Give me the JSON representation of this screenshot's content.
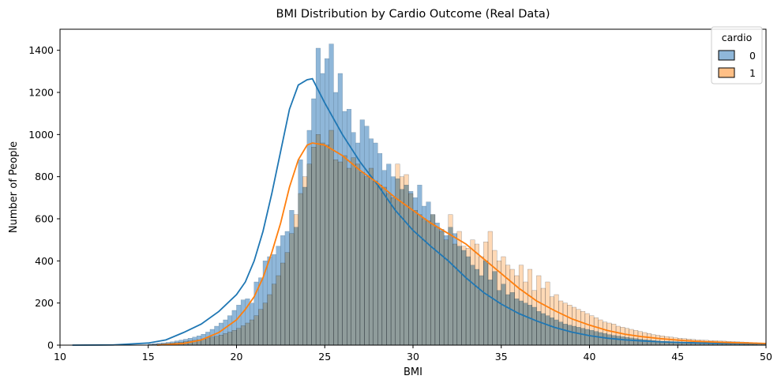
{
  "chart_data": {
    "type": "histogram",
    "title": "BMI Distribution by Cardio Outcome (Real Data)",
    "xlabel": "BMI",
    "ylabel": "Number of People",
    "xlim": [
      10,
      50
    ],
    "ylim": [
      0,
      1500
    ],
    "x_ticks": [
      10,
      15,
      20,
      25,
      30,
      35,
      40,
      45,
      50
    ],
    "y_ticks": [
      0,
      200,
      400,
      600,
      800,
      1000,
      1200,
      1400
    ],
    "legend": {
      "title": "cardio",
      "placement": "top-right"
    },
    "bin_width": 0.25,
    "bins_start": 15.0,
    "series": [
      {
        "name": "0",
        "bar_color": "#8fb7d9",
        "line_color": "#1f77b4",
        "counts": [
          5,
          7,
          9,
          11,
          13,
          16,
          20,
          24,
          28,
          33,
          38,
          44,
          52,
          62,
          75,
          90,
          105,
          120,
          140,
          165,
          190,
          215,
          220,
          200,
          300,
          320,
          400,
          420,
          430,
          470,
          520,
          540,
          640,
          560,
          880,
          750,
          1020,
          1170,
          1410,
          1290,
          1360,
          1430,
          1200,
          1290,
          1110,
          1120,
          1010,
          960,
          1070,
          1040,
          980,
          960,
          910,
          830,
          860,
          800,
          790,
          740,
          760,
          730,
          700,
          760,
          660,
          680,
          620,
          580,
          550,
          520,
          560,
          530,
          470,
          450,
          420,
          380,
          360,
          330,
          400,
          310,
          350,
          260,
          290,
          240,
          250,
          220,
          210,
          200,
          190,
          180,
          160,
          150,
          140,
          130,
          120,
          110,
          100,
          95,
          90,
          85,
          80,
          75,
          70,
          65,
          60,
          55,
          50,
          46,
          43,
          40,
          37,
          34,
          31,
          28,
          26,
          24,
          22,
          20,
          18,
          17,
          16,
          15,
          14,
          13,
          12,
          11,
          10,
          9,
          8,
          8,
          7,
          6,
          6,
          5,
          5,
          4,
          4,
          3,
          3,
          3,
          2,
          2,
          2,
          2,
          1,
          1,
          1,
          1,
          1,
          1,
          1,
          1
        ]
      },
      {
        "name": "1",
        "bar_color": "#ffbf86",
        "line_color": "#ff7f0e",
        "counts": [
          3,
          4,
          5,
          6,
          8,
          10,
          12,
          14,
          17,
          20,
          23,
          26,
          30,
          34,
          38,
          42,
          48,
          55,
          62,
          70,
          80,
          92,
          105,
          120,
          140,
          170,
          200,
          240,
          290,
          330,
          390,
          440,
          530,
          620,
          720,
          800,
          860,
          940,
          1000,
          960,
          950,
          1020,
          880,
          870,
          900,
          840,
          890,
          860,
          820,
          800,
          840,
          780,
          760,
          750,
          720,
          700,
          860,
          800,
          810,
          720,
          640,
          620,
          600,
          590,
          620,
          560,
          540,
          500,
          620,
          480,
          540,
          470,
          460,
          500,
          480,
          420,
          490,
          540,
          450,
          400,
          420,
          380,
          360,
          330,
          380,
          300,
          360,
          260,
          330,
          270,
          300,
          230,
          240,
          210,
          200,
          190,
          180,
          170,
          160,
          150,
          140,
          130,
          120,
          110,
          105,
          100,
          90,
          85,
          80,
          75,
          70,
          65,
          60,
          55,
          50,
          47,
          44,
          41,
          38,
          35,
          33,
          31,
          29,
          27,
          25,
          24,
          23,
          22,
          21,
          20,
          19,
          18,
          17,
          16,
          15,
          14,
          13,
          12,
          11,
          10,
          10,
          9,
          9,
          8,
          8
        ]
      }
    ],
    "kde": [
      {
        "name": "0",
        "x": [
          10.7,
          13,
          15,
          16,
          17,
          18,
          19,
          20,
          20.5,
          21,
          21.5,
          22,
          22.5,
          23,
          23.5,
          24,
          24.3,
          25,
          26,
          27,
          28,
          29,
          30,
          31,
          32,
          33,
          34,
          35,
          36,
          37,
          38,
          39,
          40,
          41,
          42,
          43,
          44,
          45,
          46,
          47,
          48,
          49,
          50
        ],
        "y": [
          0,
          1,
          10,
          25,
          60,
          100,
          160,
          240,
          300,
          400,
          540,
          720,
          920,
          1120,
          1235,
          1260,
          1265,
          1150,
          1000,
          870,
          760,
          640,
          545,
          470,
          400,
          320,
          250,
          195,
          150,
          115,
          85,
          62,
          45,
          33,
          25,
          20,
          16,
          13,
          11,
          9,
          8,
          7,
          6
        ]
      },
      {
        "name": "1",
        "x": [
          15.5,
          17,
          18,
          19,
          20,
          20.5,
          21,
          21.5,
          22,
          22.5,
          23,
          23.5,
          24,
          24.3,
          25,
          26,
          27,
          28,
          29,
          30,
          31,
          32,
          33,
          34,
          35,
          36,
          37,
          38,
          39,
          40,
          41,
          42,
          43,
          44,
          45,
          46,
          47,
          48,
          49,
          50
        ],
        "y": [
          0,
          8,
          25,
          60,
          120,
          170,
          230,
          320,
          440,
          580,
          750,
          880,
          950,
          960,
          950,
          900,
          830,
          770,
          700,
          640,
          580,
          530,
          480,
          410,
          340,
          270,
          210,
          165,
          125,
          95,
          70,
          52,
          40,
          31,
          24,
          18,
          15,
          12,
          10,
          8
        ]
      }
    ]
  }
}
